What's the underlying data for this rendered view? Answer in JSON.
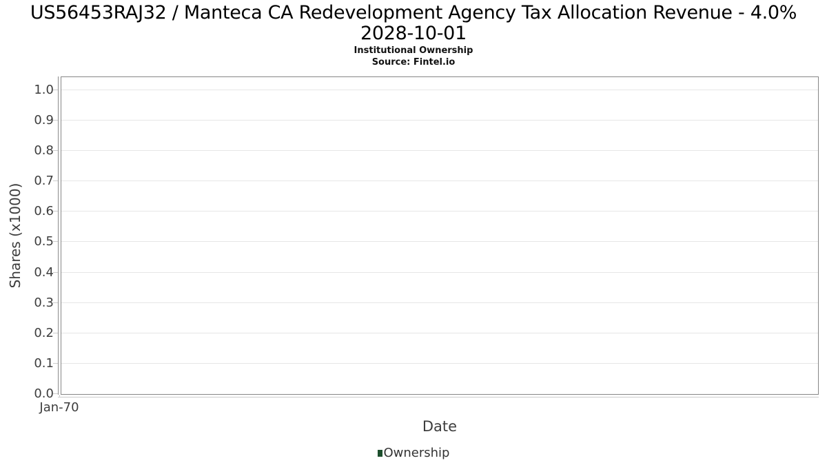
{
  "header": {
    "title_line1": "US56453RAJ32 / Manteca CA Redevelopment Agency Tax Allocation Revenue - 4.0%",
    "title_line2": "2028-10-01",
    "subtitle": "Institutional Ownership",
    "source": "Source: Fintel.io"
  },
  "chart_data": {
    "type": "line",
    "title": "US56453RAJ32 / Manteca CA Redevelopment Agency Tax Allocation Revenue - 4.0% 2028-10-01",
    "subtitle": "Institutional Ownership",
    "source": "Source: Fintel.io",
    "xlabel": "Date",
    "ylabel": "Shares (x1000)",
    "x_tick_labels": [
      "Jan-70"
    ],
    "y_tick_labels": [
      "0.0",
      "0.1",
      "0.2",
      "0.3",
      "0.4",
      "0.5",
      "0.6",
      "0.7",
      "0.8",
      "0.9",
      "1.0"
    ],
    "ylim": [
      0,
      1.043
    ],
    "grid": true,
    "legend_position": "bottom",
    "legend": {
      "entries": [
        {
          "label": "Ownership",
          "color": "#1d4f2d"
        }
      ]
    },
    "series": [
      {
        "name": "Ownership",
        "color": "#1d4f2d",
        "x": [],
        "values": []
      }
    ]
  },
  "colors": {
    "background": "#ffffff",
    "plot_border": "#858585",
    "gridline": "#e6e6e6",
    "axis_line": "#cccccc",
    "title_text": "#000000",
    "tick_text": "#3d3d3d",
    "legend_text": "#333333",
    "series_green": "#1d4f2d"
  }
}
